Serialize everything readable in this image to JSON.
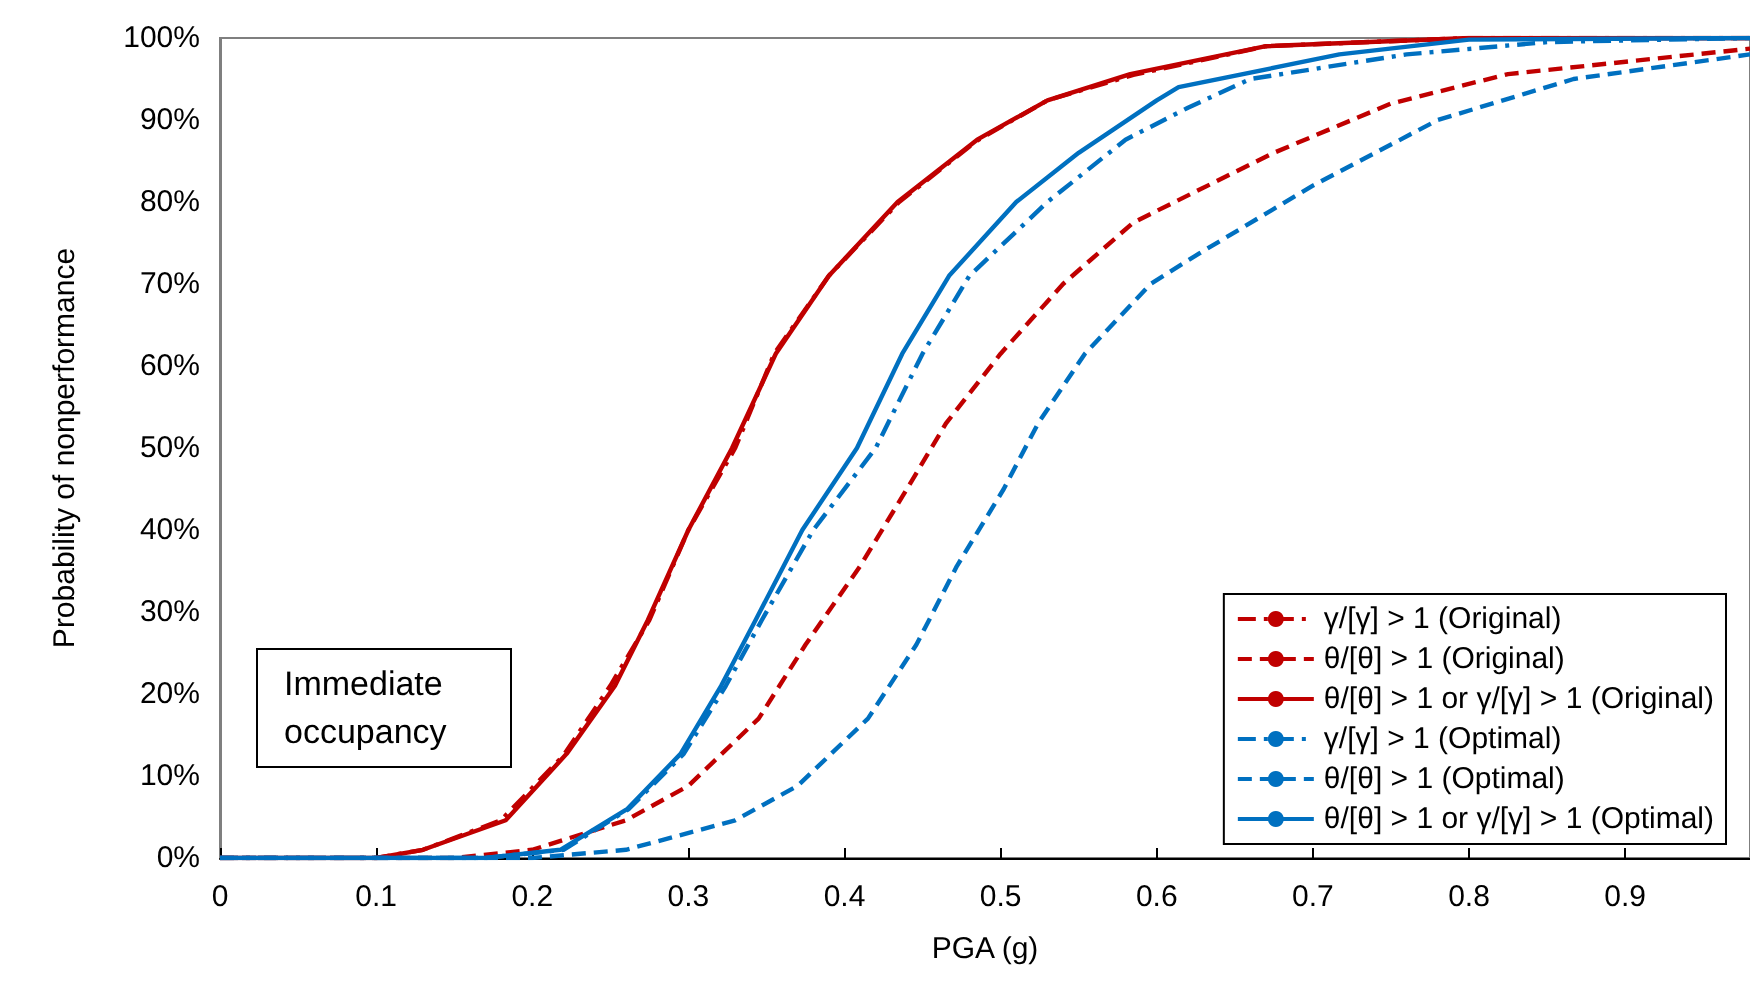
{
  "chart_data": {
    "type": "line",
    "xlabel": "PGA (g)",
    "ylabel": "Probability of nonperformance",
    "xlim": [
      0,
      0.98
    ],
    "xticks": [
      0,
      0.1,
      0.2,
      0.3,
      0.4,
      0.5,
      0.6,
      0.7,
      0.8,
      0.9
    ],
    "ylim": [
      0,
      100
    ],
    "yticks": [
      {
        "value": 0,
        "label": "0%"
      },
      {
        "value": 10,
        "label": "10%"
      },
      {
        "value": 20,
        "label": "20%"
      },
      {
        "value": 30,
        "label": "30%"
      },
      {
        "value": 40,
        "label": "40%"
      },
      {
        "value": 50,
        "label": "50%"
      },
      {
        "value": 60,
        "label": "60%"
      },
      {
        "value": 70,
        "label": "70%"
      },
      {
        "value": 80,
        "label": "80%"
      },
      {
        "value": 90,
        "label": "90%"
      },
      {
        "value": 100,
        "label": "100%"
      }
    ],
    "grid": false,
    "legend": "bottom right",
    "marker": "none",
    "annotations": [
      "Immediate occupancy"
    ],
    "series": [
      {
        "name": "γ/[γ] > 1 (Original)",
        "color": "#c00000",
        "line_style": "dashdot",
        "x": [
          0,
          0.1,
          0.13,
          0.18,
          0.22,
          0.25,
          0.275,
          0.3,
          0.33,
          0.355,
          0.39,
          0.435,
          0.485,
          0.53,
          0.585,
          0.67,
          0.8,
          0.98
        ],
        "values": [
          0,
          0,
          1,
          4.6,
          12.5,
          21,
          29,
          40,
          50,
          61.5,
          71,
          80,
          87.5,
          92.4,
          95.5,
          99,
          100,
          100
        ]
      },
      {
        "name": "θ/[θ] > 1 (Original)",
        "color": "#c00000",
        "line_style": "dashed",
        "x": [
          0,
          0.15,
          0.2,
          0.26,
          0.3,
          0.345,
          0.375,
          0.41,
          0.44,
          0.465,
          0.5,
          0.54,
          0.585,
          0.675,
          0.75,
          0.825,
          0.98
        ],
        "values": [
          0,
          0,
          1,
          4.6,
          8.8,
          17,
          26,
          35.6,
          45,
          53,
          61.5,
          70,
          77.5,
          86,
          92,
          95.6,
          98.7
        ]
      },
      {
        "name": "θ/[θ] > 1 or γ/[γ] > 1 (Original)",
        "color": "#c00000",
        "line_style": "solid",
        "x": [
          0,
          0.1,
          0.13,
          0.183,
          0.222,
          0.253,
          0.274,
          0.3,
          0.328,
          0.356,
          0.39,
          0.434,
          0.485,
          0.53,
          0.583,
          0.67,
          0.8,
          0.98
        ],
        "values": [
          0,
          0,
          1,
          4.6,
          12.7,
          21,
          29,
          40,
          50,
          61.5,
          71,
          80,
          87.6,
          92.4,
          95.6,
          99,
          100,
          100
        ]
      },
      {
        "name": "γ/[γ] > 1 (Optimal)",
        "color": "#0070c0",
        "line_style": "dashdot",
        "x": [
          0,
          0.17,
          0.22,
          0.262,
          0.297,
          0.324,
          0.347,
          0.38,
          0.42,
          0.45,
          0.48,
          0.53,
          0.58,
          0.62,
          0.66,
          0.76,
          0.85,
          0.98
        ],
        "values": [
          0,
          0,
          1,
          6,
          12.7,
          21,
          29,
          40,
          50,
          61.5,
          71,
          80,
          87.6,
          91.5,
          95,
          98,
          99.5,
          100
        ]
      },
      {
        "name": "θ/[θ] > 1 (Optimal)",
        "color": "#0070c0",
        "line_style": "dashed",
        "x": [
          0,
          0.2,
          0.26,
          0.33,
          0.37,
          0.415,
          0.446,
          0.472,
          0.502,
          0.524,
          0.554,
          0.596,
          0.627,
          0.7,
          0.78,
          0.867,
          0.98
        ],
        "values": [
          0,
          0,
          1,
          4.6,
          8.8,
          17,
          26,
          35.6,
          45,
          53,
          61.5,
          70,
          73.7,
          82,
          90,
          95,
          98
        ]
      },
      {
        "name": "θ/[θ] > 1 or γ/[γ] > 1 (Optimal)",
        "color": "#0070c0",
        "line_style": "solid",
        "x": [
          0,
          0.17,
          0.218,
          0.261,
          0.295,
          0.321,
          0.343,
          0.373,
          0.408,
          0.437,
          0.467,
          0.51,
          0.55,
          0.6,
          0.614,
          0.717,
          0.8,
          0.98
        ],
        "values": [
          0,
          0,
          1,
          6,
          12.7,
          21,
          29,
          40,
          50,
          61.5,
          71,
          80,
          86,
          92.4,
          94,
          98,
          99.8,
          100
        ]
      }
    ]
  }
}
